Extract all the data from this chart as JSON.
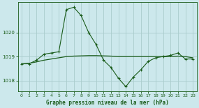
{
  "bg_color": "#cce8ec",
  "grid_color": "#aacccc",
  "line_color": "#1a5c1a",
  "marker_color": "#1a5c1a",
  "title": "Graphe pression niveau de la mer (hPa)",
  "xlim": [
    -0.5,
    23.5
  ],
  "ylim": [
    1017.55,
    1021.25
  ],
  "yticks": [
    1018,
    1019,
    1020
  ],
  "xticks": [
    0,
    1,
    2,
    3,
    4,
    5,
    6,
    7,
    8,
    9,
    10,
    11,
    12,
    13,
    14,
    15,
    16,
    17,
    18,
    19,
    20,
    21,
    22,
    23
  ],
  "series1_x": [
    0,
    1,
    2,
    3,
    4,
    5,
    6,
    7,
    8,
    9,
    10,
    11,
    12,
    13,
    14,
    15,
    16,
    17,
    18,
    19,
    20,
    21,
    22,
    23
  ],
  "series1_y": [
    1018.7,
    1018.7,
    1018.85,
    1019.1,
    1019.15,
    1019.2,
    1020.95,
    1021.05,
    1020.7,
    1020.0,
    1019.5,
    1018.85,
    1018.55,
    1018.1,
    1017.75,
    1018.15,
    1018.45,
    1018.8,
    1018.95,
    1019.0,
    1019.05,
    1019.15,
    1018.9,
    1018.9
  ],
  "smooth_line_y": [
    1018.7,
    1018.72,
    1018.78,
    1018.85,
    1018.9,
    1018.95,
    1019.0,
    1019.02,
    1019.03,
    1019.04,
    1019.04,
    1019.03,
    1019.02,
    1019.0,
    1019.0,
    1019.0,
    1019.0,
    1019.0,
    1019.0,
    1019.0,
    1019.0,
    1019.02,
    1019.0,
    1018.95
  ]
}
